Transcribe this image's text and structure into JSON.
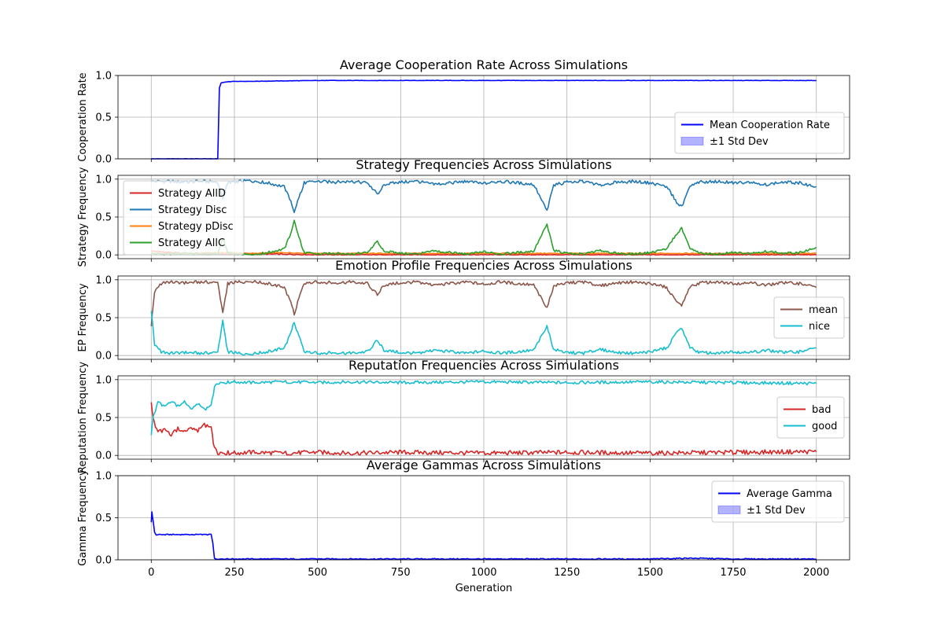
{
  "figure": {
    "background": "#ffffff"
  },
  "chart_data": [
    {
      "type": "line",
      "title": "Average Cooperation Rate Across Simulations",
      "xlabel": "",
      "ylabel": "Cooperation Rate",
      "xlim": [
        -100,
        2100
      ],
      "ylim": [
        0,
        1
      ],
      "yticks": [
        "0.0",
        "0.5",
        "1.0"
      ],
      "grid": true,
      "legend_position": "lower-right",
      "series": [
        {
          "name": "Mean Cooperation Rate",
          "color": "#0000ff",
          "kind": "line",
          "x": [
            0,
            50,
            100,
            150,
            195,
            200,
            205,
            210,
            220,
            250,
            300,
            400,
            500,
            750,
            1000,
            1250,
            1500,
            1750,
            2000
          ],
          "y": [
            0.0,
            0.0,
            0.0,
            0.0,
            0.0,
            0.0,
            0.85,
            0.91,
            0.92,
            0.93,
            0.93,
            0.935,
            0.94,
            0.94,
            0.94,
            0.94,
            0.94,
            0.94,
            0.94
          ]
        },
        {
          "name": "±1 Std Dev",
          "color": "#0000ff",
          "kind": "band"
        }
      ]
    },
    {
      "type": "line",
      "title": "Strategy Frequencies Across Simulations",
      "xlabel": "",
      "ylabel": "Strategy Frequency",
      "xlim": [
        -100,
        2100
      ],
      "ylim": [
        -0.05,
        1.05
      ],
      "yticks": [
        "0.0",
        "0.5",
        "1.0"
      ],
      "grid": true,
      "legend_position": "upper-left",
      "series": [
        {
          "name": "Strategy AllD",
          "color": "#d62728",
          "x": [
            0,
            100,
            200,
            300,
            400,
            500,
            750,
            1000,
            1250,
            1500,
            1750,
            2000
          ],
          "y": [
            0.05,
            0.02,
            0.01,
            0.01,
            0.01,
            0.0,
            0.0,
            0.0,
            0.0,
            0.0,
            0.0,
            0.0
          ]
        },
        {
          "name": "Strategy Disc",
          "color": "#1f77b4",
          "x": [
            0,
            50,
            100,
            150,
            200,
            215,
            230,
            260,
            300,
            350,
            400,
            420,
            430,
            440,
            460,
            500,
            550,
            600,
            650,
            680,
            700,
            750,
            800,
            850,
            900,
            950,
            1000,
            1050,
            1100,
            1150,
            1190,
            1210,
            1250,
            1300,
            1350,
            1400,
            1450,
            1500,
            1550,
            1580,
            1595,
            1620,
            1650,
            1700,
            1750,
            1800,
            1850,
            1900,
            1950,
            2000
          ],
          "y": [
            0.97,
            0.97,
            0.96,
            0.97,
            0.96,
            0.75,
            0.95,
            0.97,
            0.98,
            0.95,
            0.9,
            0.7,
            0.55,
            0.7,
            0.95,
            0.97,
            0.96,
            0.97,
            0.95,
            0.8,
            0.93,
            0.96,
            0.97,
            0.93,
            0.95,
            0.97,
            0.94,
            0.97,
            0.95,
            0.93,
            0.58,
            0.92,
            0.96,
            0.97,
            0.92,
            0.96,
            0.97,
            0.95,
            0.9,
            0.7,
            0.63,
            0.9,
            0.96,
            0.97,
            0.95,
            0.96,
            0.93,
            0.96,
            0.95,
            0.9
          ]
        },
        {
          "name": "Strategy pDisc",
          "color": "#ff7f0e",
          "x": [
            0,
            100,
            200,
            300,
            400,
            500,
            750,
            1000,
            1250,
            1500,
            1750,
            2000
          ],
          "y": [
            0.02,
            0.02,
            0.03,
            0.02,
            0.03,
            0.02,
            0.02,
            0.02,
            0.02,
            0.02,
            0.02,
            0.02
          ]
        },
        {
          "name": "Strategy AllC",
          "color": "#2ca02c",
          "x": [
            0,
            50,
            100,
            150,
            200,
            215,
            230,
            260,
            300,
            350,
            400,
            420,
            430,
            440,
            460,
            500,
            550,
            600,
            650,
            680,
            700,
            750,
            800,
            850,
            900,
            950,
            1000,
            1050,
            1100,
            1150,
            1190,
            1210,
            1250,
            1300,
            1350,
            1400,
            1450,
            1500,
            1550,
            1580,
            1595,
            1620,
            1650,
            1700,
            1750,
            1800,
            1850,
            1900,
            1950,
            2000
          ],
          "y": [
            0.02,
            0.01,
            0.02,
            0.01,
            0.02,
            0.22,
            0.03,
            0.01,
            0.0,
            0.03,
            0.08,
            0.28,
            0.45,
            0.28,
            0.03,
            0.01,
            0.02,
            0.01,
            0.03,
            0.18,
            0.05,
            0.02,
            0.01,
            0.05,
            0.03,
            0.01,
            0.04,
            0.01,
            0.03,
            0.05,
            0.4,
            0.06,
            0.02,
            0.01,
            0.06,
            0.02,
            0.01,
            0.03,
            0.08,
            0.28,
            0.35,
            0.08,
            0.02,
            0.01,
            0.03,
            0.02,
            0.05,
            0.02,
            0.03,
            0.1
          ]
        }
      ]
    },
    {
      "type": "line",
      "title": "Emotion Profile Frequencies Across Simulations",
      "xlabel": "",
      "ylabel": "EP Frequency",
      "xlim": [
        -100,
        2100
      ],
      "ylim": [
        -0.05,
        1.05
      ],
      "yticks": [
        "0.0",
        "0.5",
        "1.0"
      ],
      "grid": true,
      "legend_position": "center-right",
      "series": [
        {
          "name": "mean",
          "color": "#8c564b",
          "x": [
            0,
            10,
            30,
            50,
            100,
            150,
            200,
            215,
            230,
            260,
            300,
            350,
            400,
            420,
            430,
            440,
            460,
            500,
            550,
            600,
            650,
            680,
            700,
            750,
            800,
            850,
            900,
            950,
            1000,
            1050,
            1100,
            1150,
            1190,
            1210,
            1250,
            1300,
            1350,
            1400,
            1450,
            1500,
            1550,
            1580,
            1595,
            1620,
            1650,
            1700,
            1750,
            1800,
            1850,
            1900,
            1950,
            2000
          ],
          "y": [
            0.4,
            0.85,
            0.95,
            0.97,
            0.96,
            0.97,
            0.96,
            0.55,
            0.95,
            0.97,
            0.98,
            0.95,
            0.9,
            0.7,
            0.55,
            0.7,
            0.95,
            0.97,
            0.96,
            0.97,
            0.95,
            0.8,
            0.93,
            0.96,
            0.97,
            0.93,
            0.95,
            0.97,
            0.94,
            0.97,
            0.95,
            0.93,
            0.62,
            0.92,
            0.96,
            0.97,
            0.92,
            0.96,
            0.97,
            0.95,
            0.9,
            0.7,
            0.65,
            0.9,
            0.96,
            0.97,
            0.95,
            0.96,
            0.93,
            0.96,
            0.95,
            0.9
          ]
        },
        {
          "name": "nice",
          "color": "#17becf",
          "x": [
            0,
            10,
            30,
            50,
            100,
            150,
            200,
            215,
            230,
            260,
            300,
            350,
            400,
            420,
            430,
            440,
            460,
            500,
            550,
            600,
            650,
            680,
            700,
            750,
            800,
            850,
            900,
            950,
            1000,
            1050,
            1100,
            1150,
            1190,
            1210,
            1250,
            1300,
            1350,
            1400,
            1450,
            1500,
            1550,
            1580,
            1595,
            1620,
            1650,
            1700,
            1750,
            1800,
            1850,
            1900,
            1950,
            2000
          ],
          "y": [
            0.6,
            0.15,
            0.05,
            0.03,
            0.04,
            0.03,
            0.04,
            0.45,
            0.05,
            0.03,
            0.02,
            0.05,
            0.1,
            0.3,
            0.45,
            0.3,
            0.05,
            0.03,
            0.04,
            0.03,
            0.05,
            0.2,
            0.07,
            0.04,
            0.03,
            0.07,
            0.05,
            0.03,
            0.06,
            0.03,
            0.05,
            0.07,
            0.38,
            0.08,
            0.04,
            0.03,
            0.08,
            0.04,
            0.03,
            0.05,
            0.1,
            0.3,
            0.35,
            0.1,
            0.04,
            0.03,
            0.05,
            0.04,
            0.07,
            0.04,
            0.05,
            0.1
          ]
        }
      ]
    },
    {
      "type": "line",
      "title": "Reputation Frequencies Across Simulations",
      "xlabel": "",
      "ylabel": "Reputation Frequency",
      "xlim": [
        -100,
        2100
      ],
      "ylim": [
        -0.05,
        1.05
      ],
      "yticks": [
        "0.0",
        "0.5",
        "1.0"
      ],
      "grid": true,
      "legend_position": "center-right",
      "series": [
        {
          "name": "bad",
          "color": "#d62728",
          "x": [
            0,
            5,
            20,
            40,
            60,
            80,
            100,
            120,
            140,
            160,
            180,
            190,
            200,
            250,
            300,
            400,
            500,
            600,
            750,
            1000,
            1250,
            1500,
            1750,
            2000
          ],
          "y": [
            0.72,
            0.5,
            0.3,
            0.35,
            0.28,
            0.35,
            0.3,
            0.38,
            0.32,
            0.4,
            0.35,
            0.1,
            0.04,
            0.03,
            0.04,
            0.03,
            0.04,
            0.03,
            0.04,
            0.03,
            0.04,
            0.03,
            0.04,
            0.05
          ]
        },
        {
          "name": "good",
          "color": "#17becf",
          "x": [
            0,
            5,
            20,
            40,
            60,
            80,
            100,
            120,
            140,
            160,
            180,
            190,
            200,
            250,
            300,
            400,
            500,
            600,
            750,
            1000,
            1250,
            1500,
            1750,
            2000
          ],
          "y": [
            0.28,
            0.5,
            0.7,
            0.65,
            0.72,
            0.65,
            0.7,
            0.62,
            0.68,
            0.6,
            0.65,
            0.9,
            0.96,
            0.97,
            0.96,
            0.97,
            0.96,
            0.97,
            0.96,
            0.97,
            0.96,
            0.97,
            0.96,
            0.95
          ]
        }
      ]
    },
    {
      "type": "line",
      "title": "Average Gammas Across Simulations",
      "xlabel": "Generation",
      "ylabel": "Gamma Frequency",
      "xlim": [
        -100,
        2100
      ],
      "ylim": [
        0,
        1
      ],
      "xticks": [
        "0",
        "250",
        "500",
        "750",
        "1000",
        "1250",
        "1500",
        "1750",
        "2000"
      ],
      "yticks": [
        "0.0",
        "0.5",
        "1.0"
      ],
      "grid": true,
      "legend_position": "upper-right",
      "series": [
        {
          "name": "Average Gamma",
          "color": "#0000ff",
          "kind": "line",
          "x": [
            0,
            2,
            4,
            6,
            10,
            15,
            25,
            50,
            100,
            150,
            180,
            185,
            190,
            200,
            300,
            500,
            750,
            1000,
            1250,
            1500,
            1620,
            1750,
            2000
          ],
          "y": [
            0.45,
            0.57,
            0.5,
            0.45,
            0.33,
            0.29,
            0.3,
            0.3,
            0.3,
            0.3,
            0.3,
            0.2,
            0.02,
            0.01,
            0.01,
            0.01,
            0.01,
            0.01,
            0.01,
            0.01,
            0.02,
            0.01,
            0.01
          ]
        },
        {
          "name": "±1 Std Dev",
          "color": "#0000ff",
          "kind": "band"
        }
      ]
    }
  ]
}
